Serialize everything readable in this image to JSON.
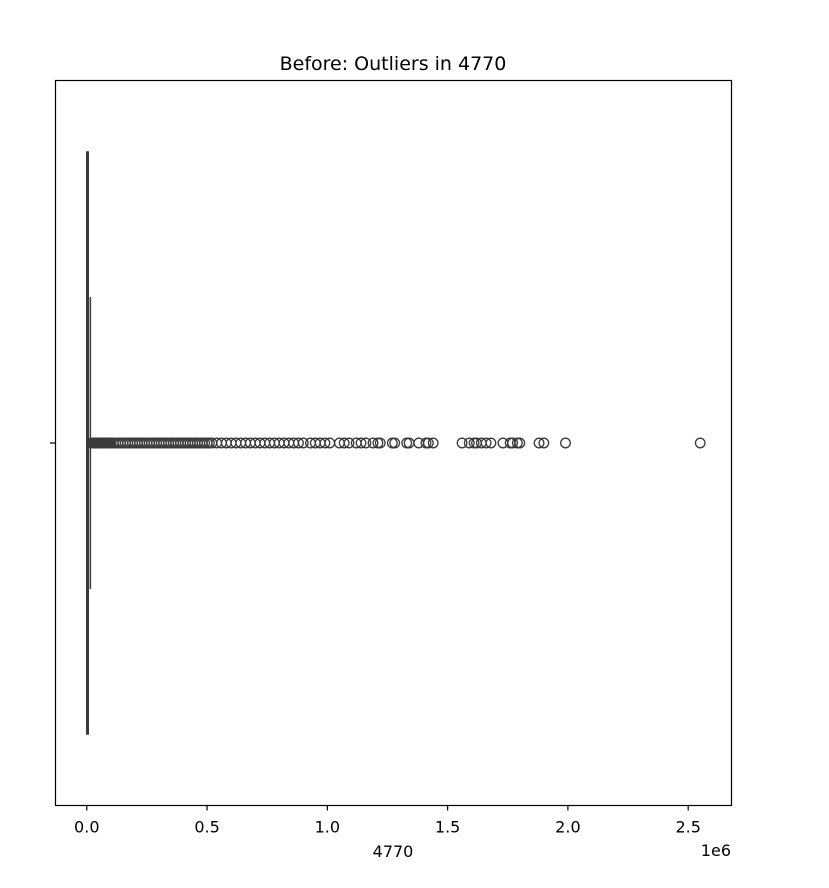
{
  "chart_data": {
    "type": "boxplot",
    "title": "Before: Outliers in 4770",
    "xlabel": "4770",
    "x_offset_label": "1e6",
    "xlim": [
      -130000,
      2680000
    ],
    "x_ticks": [
      {
        "value": 0,
        "label": "0.0"
      },
      {
        "value": 500000,
        "label": "0.5"
      },
      {
        "value": 1000000,
        "label": "1.0"
      },
      {
        "value": 1500000,
        "label": "1.5"
      },
      {
        "value": 2000000,
        "label": "2.0"
      },
      {
        "value": 2500000,
        "label": "2.5"
      }
    ],
    "orientation": "horizontal",
    "box": {
      "min": 0,
      "q1": 0,
      "median": 0,
      "q3": 1500,
      "max": 15000
    },
    "outliers": [
      20000,
      25000,
      30000,
      35000,
      40000,
      45000,
      50000,
      55000,
      60000,
      65000,
      70000,
      75000,
      80000,
      85000,
      90000,
      95000,
      100000,
      110000,
      120000,
      130000,
      140000,
      150000,
      160000,
      170000,
      180000,
      190000,
      200000,
      210000,
      220000,
      230000,
      240000,
      250000,
      260000,
      270000,
      280000,
      290000,
      300000,
      310000,
      320000,
      330000,
      340000,
      350000,
      360000,
      370000,
      380000,
      390000,
      400000,
      410000,
      420000,
      430000,
      440000,
      450000,
      460000,
      470000,
      480000,
      490000,
      500000,
      510000,
      520000,
      540000,
      560000,
      580000,
      600000,
      620000,
      640000,
      660000,
      680000,
      700000,
      720000,
      740000,
      760000,
      780000,
      800000,
      820000,
      840000,
      860000,
      880000,
      900000,
      930000,
      950000,
      970000,
      990000,
      1010000,
      1050000,
      1070000,
      1090000,
      1120000,
      1140000,
      1160000,
      1190000,
      1210000,
      1220000,
      1270000,
      1280000,
      1330000,
      1340000,
      1380000,
      1410000,
      1420000,
      1440000,
      1560000,
      1590000,
      1610000,
      1620000,
      1640000,
      1660000,
      1680000,
      1730000,
      1760000,
      1770000,
      1790000,
      1800000,
      1880000,
      1900000,
      1990000,
      2550000
    ],
    "grid": false
  }
}
